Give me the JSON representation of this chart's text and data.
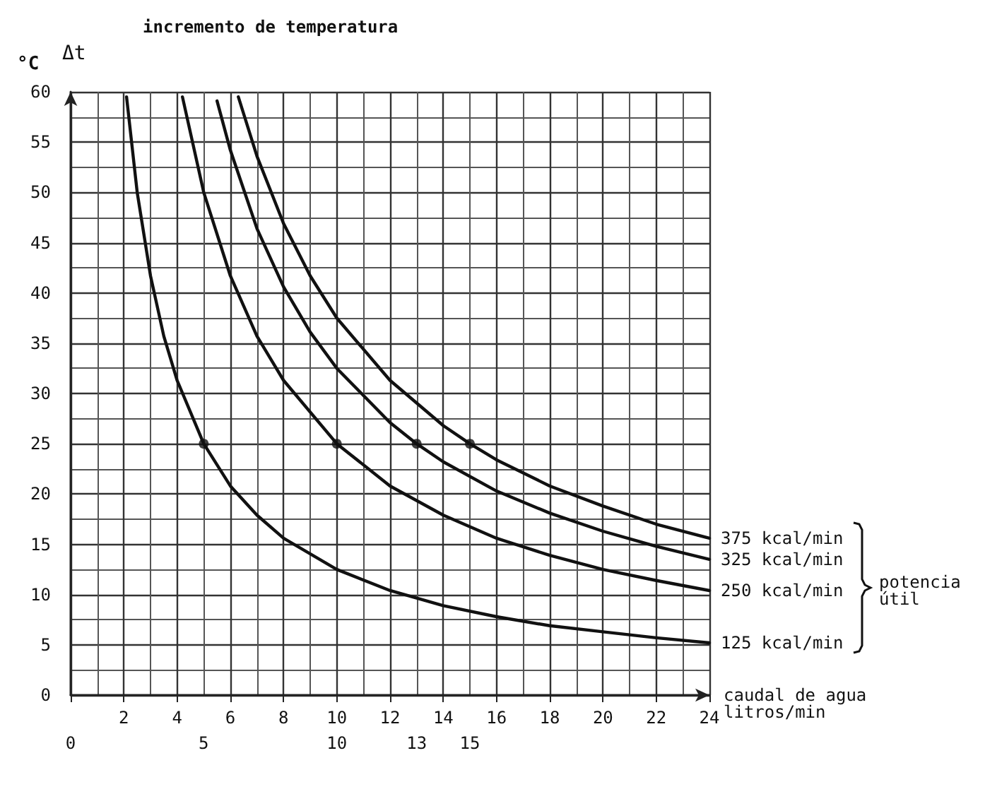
{
  "chart_data": {
    "type": "line",
    "title": "incremento de temperatura",
    "ylabel": "Δt",
    "xlabel": "caudal de agua litros/min",
    "annotations": [
      "°C",
      "potencia útil"
    ],
    "xlim": [
      0,
      24
    ],
    "xticks": [
      2,
      4,
      6,
      8,
      10,
      12,
      14,
      16,
      18,
      20,
      22,
      24
    ],
    "x2lim": [
      0,
      24
    ],
    "x2ticks": [
      0,
      5,
      10,
      13,
      15
    ],
    "ylim": [
      0,
      60
    ],
    "yticks": [
      0,
      5,
      10,
      15,
      20,
      25,
      30,
      35,
      40,
      45,
      50,
      55,
      60
    ],
    "grid": true,
    "marker": "none",
    "line_style": "solid",
    "legend": false,
    "series": [
      {
        "name": "375 kcal/min",
        "color": "#111111",
        "x": [
          6.3,
          7,
          8,
          9,
          10,
          12,
          14,
          15,
          16,
          18,
          20,
          22,
          24
        ],
        "values": [
          59.5,
          53.6,
          46.9,
          41.7,
          37.5,
          31.3,
          26.8,
          25,
          23.4,
          20.8,
          18.8,
          17,
          15.6
        ]
      },
      {
        "name": "325 kcal/min",
        "color": "#111111",
        "x": [
          5.5,
          6,
          7,
          8,
          9,
          10,
          12,
          13,
          14,
          16,
          18,
          20,
          22,
          24
        ],
        "values": [
          59.1,
          54.2,
          46.4,
          40.6,
          36.1,
          32.5,
          27.1,
          25,
          23.2,
          20.3,
          18.1,
          16.3,
          14.8,
          13.5
        ]
      },
      {
        "name": "250 kcal/min",
        "color": "#111111",
        "x": [
          4.2,
          5,
          6,
          7,
          8,
          10,
          12,
          14,
          16,
          18,
          20,
          22,
          24
        ],
        "values": [
          59.5,
          50,
          41.7,
          35.7,
          31.3,
          25,
          20.8,
          17.9,
          15.6,
          13.9,
          12.5,
          11.4,
          10.4
        ]
      },
      {
        "name": "125 kcal/min",
        "color": "#111111",
        "x": [
          2.1,
          2.5,
          3,
          3.5,
          4,
          5,
          6,
          7,
          8,
          10,
          12,
          14,
          16,
          18,
          20,
          22,
          24
        ],
        "values": [
          59.5,
          50,
          41.7,
          35.7,
          31.3,
          25,
          20.8,
          17.9,
          15.6,
          12.5,
          10.4,
          8.9,
          7.8,
          6.9,
          6.3,
          5.7,
          5.2
        ]
      },
      {
        "type": "scatter",
        "color": "#111111",
        "marker": "circle",
        "x": [
          5,
          10,
          13,
          15
        ],
        "values": [
          25,
          25,
          25,
          25
        ]
      }
    ]
  }
}
